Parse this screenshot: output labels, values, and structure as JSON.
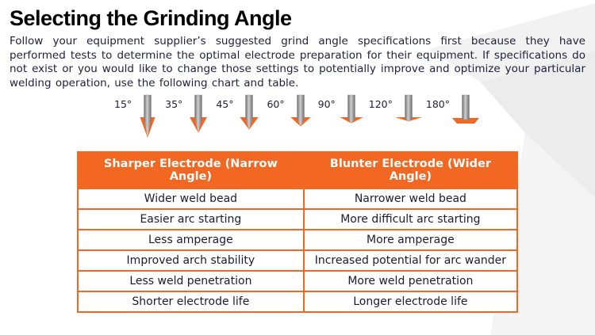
{
  "page": {
    "title": "Selecting the Grinding Angle",
    "intro": "Follow your equipment supplier’s suggested grind angle specifications first because they have performed tests to determine the optimal electrode preparation for their equipment. If specifications do not exist or you would like to change those settings to potentially improve and optimize your particular welding operation, use the following chart and table."
  },
  "diagram": {
    "angles": [
      {
        "label": "15°",
        "degrees": 15
      },
      {
        "label": "35°",
        "degrees": 35
      },
      {
        "label": "45°",
        "degrees": 45
      },
      {
        "label": "60°",
        "degrees": 60
      },
      {
        "label": "90°",
        "degrees": 90
      },
      {
        "label": "120°",
        "degrees": 120
      },
      {
        "label": "180°",
        "degrees": 180
      }
    ]
  },
  "table": {
    "headers": [
      "Sharper Electrode (Narrow Angle)",
      "Blunter Electrode (Wider Angle)"
    ],
    "rows": [
      [
        "Wider weld bead",
        "Narrower weld bead"
      ],
      [
        "Easier arc starting",
        "More difficult arc starting"
      ],
      [
        "Less amperage",
        "More amperage"
      ],
      [
        "Improved arch stability",
        "Increased potential for arc wander"
      ],
      [
        "Less weld penetration",
        "More weld penetration"
      ],
      [
        "Shorter electrode life",
        "Longer electrode life"
      ]
    ]
  },
  "colors": {
    "accent": "#f26722",
    "rod_gray_dark": "#6f6f6f",
    "rod_gray_light": "#cfcfcf",
    "text": "#22223e"
  }
}
